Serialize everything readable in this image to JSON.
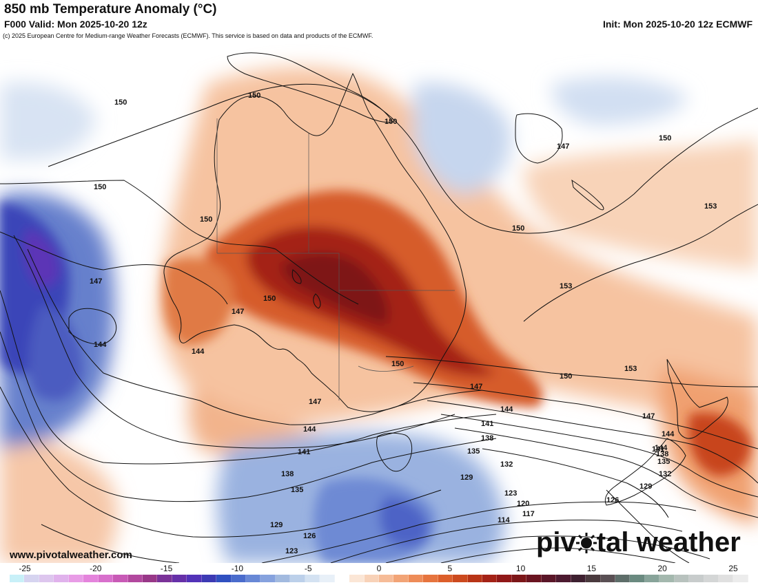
{
  "header": {
    "title": "850 mb Temperature Anomaly (°C)",
    "valid": "F000 Valid: Mon 2025-10-20 12z",
    "init": "Init: Mon 2025-10-20 12z ECMWF",
    "credit": "(c) 2025 European Centre for Medium-range Weather Forecasts (ECMWF). This service is based on data and products of the ECMWF."
  },
  "footer": {
    "site": "www.pivotalweather.com",
    "brand_left": "piv",
    "brand_right": "tal weather"
  },
  "contour_labels": [
    "150",
    "150",
    "150",
    "150",
    "150",
    "147",
    "150",
    "147",
    "144",
    "144",
    "147",
    "144",
    "150",
    "147",
    "144",
    "141",
    "138",
    "135",
    "132",
    "129",
    "123",
    "120",
    "117",
    "114",
    "126",
    "123",
    "129",
    "135",
    "138",
    "141",
    "144",
    "147",
    "150",
    "153",
    "153",
    "150",
    "150",
    "153",
    "147",
    "144",
    "141",
    "138",
    "135",
    "132",
    "129",
    "126"
  ],
  "colorbar": {
    "labels": [
      "-25",
      "-20",
      "-15",
      "-10",
      "-5",
      "0",
      "5",
      "10",
      "15",
      "20",
      "25"
    ],
    "colors": [
      "#c8f0f8",
      "#d6d4f0",
      "#ddc6ee",
      "#e0b2ec",
      "#e89ce6",
      "#e484dc",
      "#d870cc",
      "#c85ab6",
      "#b2489e",
      "#983888",
      "#7a3298",
      "#6630a8",
      "#5232b8",
      "#3c3ab4",
      "#3050c0",
      "#4a6ccc",
      "#6888d6",
      "#86a2de",
      "#a2badf",
      "#bcd0ea",
      "#d4e2f2",
      "#e8f0f8",
      "#ffffff",
      "#fbe6d6",
      "#f8d2b8",
      "#f6bc98",
      "#f2a476",
      "#ee8c58",
      "#e6743e",
      "#dc5e2a",
      "#cc4a1e",
      "#b83416",
      "#a42216",
      "#901818",
      "#7c1618",
      "#6a1420",
      "#5a1628",
      "#4c1a30",
      "#3e2030",
      "#4a3a3e",
      "#5a5054",
      "#5e6e6a",
      "#6a8a80",
      "#88a49a",
      "#a4b8ae",
      "#b8c2be",
      "#c8cccc",
      "#d4d6d6",
      "#e0e0e0",
      "#ececec"
    ]
  }
}
